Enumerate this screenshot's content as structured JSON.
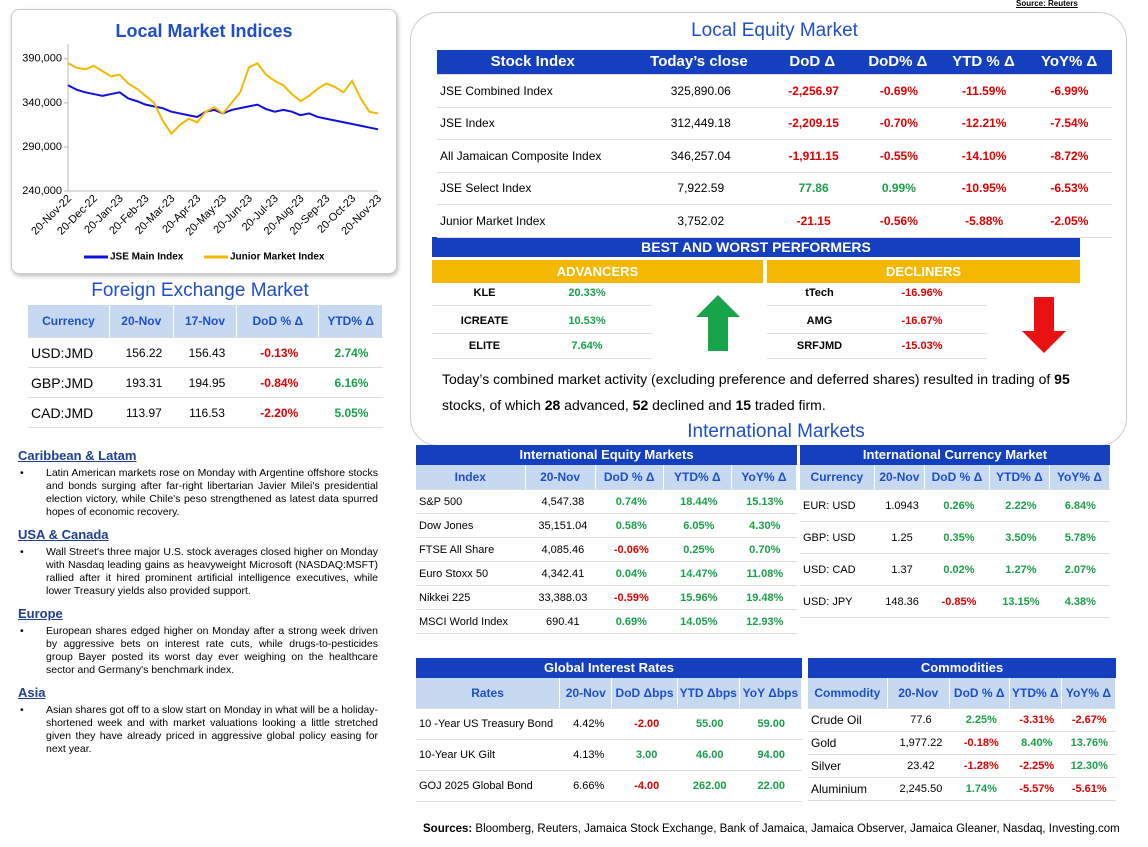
{
  "source_note": "Source: Reuters",
  "chart_data": {
    "type": "line",
    "title": "Local Market Indices",
    "categories": [
      "20-Nov-22",
      null,
      null,
      "20-Dec-22",
      null,
      null,
      "20-Jan-23",
      null,
      null,
      "20-Feb-23",
      null,
      null,
      "20-Mar-23",
      null,
      null,
      "20-Apr-23",
      null,
      null,
      "20-May-23",
      null,
      null,
      "20-Jun-23",
      null,
      null,
      "20-Jul-23",
      null,
      null,
      "20-Aug-23",
      null,
      null,
      "20-Sep-23",
      null,
      null,
      "20-Oct-23",
      null,
      null,
      "20-Nov-23"
    ],
    "series": [
      {
        "name": "JSE Main Index",
        "color": "#1010e0",
        "values": [
          360000,
          355000,
          352000,
          350000,
          348000,
          350000,
          352000,
          345000,
          342000,
          338000,
          336000,
          334000,
          330000,
          328000,
          326000,
          324000,
          330000,
          332000,
          328000,
          332000,
          334000,
          336000,
          338000,
          333000,
          330000,
          332000,
          330000,
          326000,
          328000,
          324000,
          322000,
          320000,
          318000,
          316000,
          314000,
          312000,
          310000
        ]
      },
      {
        "name": "Junior Market Index",
        "color": "#f5b800",
        "values": [
          385000,
          380000,
          378000,
          382000,
          376000,
          370000,
          372000,
          362000,
          356000,
          348000,
          340000,
          320000,
          305000,
          315000,
          322000,
          318000,
          330000,
          335000,
          328000,
          340000,
          352000,
          380000,
          385000,
          372000,
          365000,
          360000,
          350000,
          342000,
          348000,
          356000,
          362000,
          358000,
          352000,
          365000,
          345000,
          330000,
          328000
        ]
      }
    ],
    "ylim": [
      240000,
      400000
    ],
    "yticks": [
      {
        "value": 240000,
        "label": "240,000"
      },
      {
        "value": 290000,
        "label": "290,000"
      },
      {
        "value": 340000,
        "label": "340,000"
      },
      {
        "value": 390000,
        "label": "390,000"
      }
    ]
  },
  "fx": {
    "title": "Foreign Exchange Market",
    "columns": [
      "Currency",
      "20-Nov",
      "17-Nov",
      "DoD % Δ",
      "YTD% Δ"
    ],
    "rows": [
      [
        "USD:JMD",
        "156.22",
        "156.43",
        "-0.13%",
        "2.74%"
      ],
      [
        "GBP:JMD",
        "193.31",
        "194.95",
        "-0.84%",
        "6.16%"
      ],
      [
        "CAD:JMD",
        "113.97",
        "116.53",
        "-2.20%",
        "5.05%"
      ]
    ]
  },
  "news": [
    {
      "heading": "Caribbean & Latam",
      "text": "Latin American markets rose on Monday with Argentine offshore stocks and bonds surging after far-right libertarian Javier Milei's presidential election victory, while Chile's peso strengthened as latest data spurred hopes of economic recovery."
    },
    {
      "heading": "USA & Canada",
      "text": "Wall Street's three major U.S. stock averages closed higher on Monday with Nasdaq leading gains as heavyweight Microsoft (NASDAQ:MSFT) rallied after it hired prominent artificial intelligence executives, while lower Treasury yields also provided support."
    },
    {
      "heading": "Europe",
      "text": "European shares edged higher on Monday after a strong week driven by aggressive bets on interest rate cuts, while drugs-to-pesticides group Bayer posted its worst day ever weighing on the healthcare sector and Germany's benchmark index."
    },
    {
      "heading": "Asia",
      "text": "Asian shares got off to a slow start on Monday in what will be a holiday-shortened week and with market valuations looking a little stretched given they have already priced in aggressive global policy easing for next year."
    }
  ],
  "equity": {
    "title": "Local Equity Market",
    "columns": [
      "Stock Index",
      "Today’s close",
      "DoD  Δ",
      "DoD% Δ",
      "YTD % Δ",
      "YoY% Δ"
    ],
    "rows": [
      [
        "JSE Combined Index",
        "325,890.06",
        "-2,256.97",
        "-0.69%",
        "-11.59%",
        "-6.99%"
      ],
      [
        "JSE Index",
        "312,449.18",
        "-2,209.15",
        "-0.70%",
        "-12.21%",
        "-7.54%"
      ],
      [
        "All Jamaican Composite Index",
        "346,257.04",
        "-1,911.15",
        "-0.55%",
        "-14.10%",
        "-8.72%"
      ],
      [
        "JSE Select Index",
        "7,922.59",
        "77.86",
        "0.99%",
        "-10.95%",
        "-6.53%"
      ],
      [
        "Junior Market Index",
        "3,752.02",
        "-21.15",
        "-0.56%",
        "-5.88%",
        "-2.05%"
      ]
    ]
  },
  "performers": {
    "title": "BEST AND WORST PERFORMERS",
    "advancers_label": "ADVANCERS",
    "decliners_label": "DECLINERS",
    "advancers": [
      [
        "KLE",
        "20.33%"
      ],
      [
        "ICREATE",
        "10.53%"
      ],
      [
        "ELITE",
        "7.64%"
      ]
    ],
    "decliners": [
      [
        "tTech",
        "-16.96%"
      ],
      [
        "AMG",
        "-16.67%"
      ],
      [
        "SRFJMD",
        "-15.03%"
      ]
    ]
  },
  "summary": [
    "Today’s combined market activity (excluding preference and deferred shares) resulted in trading of ",
    "95",
    " stocks, of which ",
    "28",
    " advanced, ",
    "52",
    " declined and ",
    "15",
    " traded firm."
  ],
  "international": {
    "title": "International Markets",
    "equity": {
      "title": "International Equity Markets",
      "columns": [
        "Index",
        "20-Nov",
        "DoD % Δ",
        "YTD% Δ",
        "YoY% Δ"
      ],
      "rows": [
        [
          "S&P 500",
          "4,547.38",
          "0.74%",
          "18.44%",
          "15.13%"
        ],
        [
          "Dow Jones",
          "35,151.04",
          "0.58%",
          "6.05%",
          "4.30%"
        ],
        [
          "FTSE All Share",
          "4,085.46",
          "-0.06%",
          "0.25%",
          "0.70%"
        ],
        [
          "Euro Stoxx 50",
          "4,342.41",
          "0.04%",
          "14.47%",
          "11.08%"
        ],
        [
          "Nikkei 225",
          "33,388.03",
          "-0.59%",
          "15.96%",
          "19.48%"
        ],
        [
          "MSCI World Index",
          "690.41",
          "0.69%",
          "14.05%",
          "12.93%"
        ]
      ]
    },
    "currency": {
      "title": "International Currency Market",
      "columns": [
        "Currency",
        "20-Nov",
        "DoD % Δ",
        "YTD% Δ",
        "YoY% Δ"
      ],
      "rows": [
        [
          "EUR: USD",
          "1.0943",
          "0.26%",
          "2.22%",
          "6.84%"
        ],
        [
          "GBP: USD",
          "1.25",
          "0.35%",
          "3.50%",
          "5.78%"
        ],
        [
          "USD: CAD",
          "1.37",
          "0.02%",
          "1.27%",
          "2.07%"
        ],
        [
          "USD: JPY",
          "148.36",
          "-0.85%",
          "13.15%",
          "4.38%"
        ]
      ]
    },
    "rates": {
      "title": "Global Interest Rates",
      "columns": [
        "Rates",
        "20-Nov",
        "DoD Δbps",
        "YTD Δbps",
        "YoY Δbps"
      ],
      "rows": [
        [
          "10 -Year US Treasury Bond",
          "4.42%",
          "-2.00",
          "55.00",
          "59.00"
        ],
        [
          "10-Year UK Gilt",
          "4.13%",
          "3.00",
          "46.00",
          "94.00"
        ],
        [
          "GOJ 2025 Global Bond",
          "6.66%",
          "-4.00",
          "262.00",
          "22.00"
        ]
      ]
    },
    "commodities": {
      "title": "Commodities",
      "columns": [
        "Commodity",
        "20-Nov",
        "DoD % Δ",
        "YTD% Δ",
        "YoY% Δ"
      ],
      "rows": [
        [
          "Crude Oil",
          "77.6",
          "2.25%",
          "-3.31%",
          "-2.67%"
        ],
        [
          "Gold",
          "1,977.22",
          "-0.18%",
          "8.40%",
          "13.76%"
        ],
        [
          "Silver",
          "23.42",
          "-1.28%",
          "-2.25%",
          "12.30%"
        ],
        [
          "Aluminium",
          "2,245.50",
          "1.74%",
          "-5.57%",
          "-5.61%"
        ]
      ]
    }
  },
  "footer": {
    "label": "Sources:",
    "text": "Bloomberg, Reuters, Jamaica Stock Exchange, Bank of Jamaica, Jamaica Observer, Jamaica Gleaner, Nasdaq, Investing.com"
  }
}
